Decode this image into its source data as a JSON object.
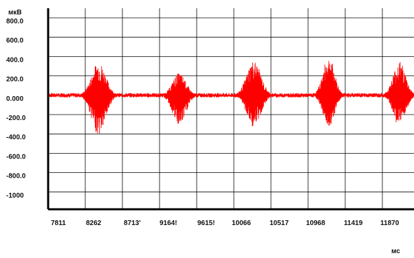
{
  "chart_data": {
    "type": "line",
    "title": "",
    "ylabel": "мкВ",
    "xlabel": "мс",
    "y_ticks": [
      "800.0",
      "600.0",
      "400.0",
      "200.0",
      "0.000",
      "-200.0",
      "-400.0",
      "-600.0",
      "-800.0",
      "-1000"
    ],
    "x_ticks": [
      "7811",
      "8262",
      "8713'",
      "9164!",
      "9615!",
      "10066",
      "10517",
      "10968",
      "11419",
      "11870"
    ],
    "ylim": [
      -1000,
      900
    ],
    "xlim": [
      7700,
      11970
    ],
    "grid": true,
    "line_color": "#ff0000",
    "series": [
      {
        "bursts": [
          {
            "center": 8290,
            "half_width": 170,
            "peak_up": 350,
            "peak_down": -410
          },
          {
            "center": 9230,
            "half_width": 160,
            "peak_up": 230,
            "peak_down": -320
          },
          {
            "center": 10100,
            "half_width": 170,
            "peak_up": 360,
            "peak_down": -330
          },
          {
            "center": 10975,
            "half_width": 140,
            "peak_up": 400,
            "peak_down": -320
          },
          {
            "center": 11800,
            "half_width": 150,
            "peak_up": 350,
            "peak_down": -320
          }
        ],
        "baseline": 0,
        "baseline_noise": 20
      }
    ]
  }
}
